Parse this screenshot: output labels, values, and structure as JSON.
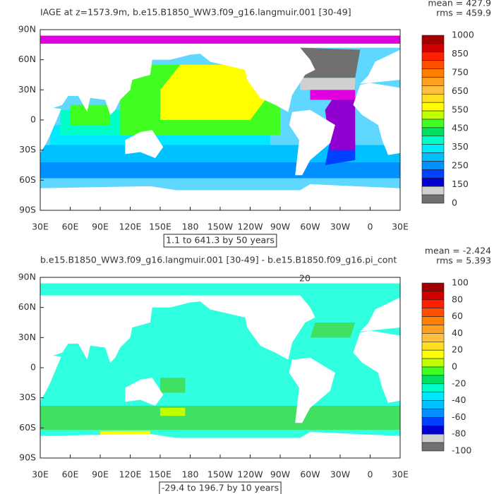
{
  "panels": [
    {
      "title": "IAGE at z=1573.9m, b.e15.B1850_WW3.f09_g16.langmuir.001 [30-49]",
      "stats": [
        "mean = 427.9",
        "rms = 459.9"
      ],
      "range_label": "1.1 to 641.3 by 50 years",
      "xlabels": [
        "30E",
        "60E",
        "90E",
        "120E",
        "150E",
        "180",
        "150W",
        "120W",
        "90W",
        "60W",
        "30W",
        "0",
        "30E"
      ],
      "ylabels": [
        "90N",
        "60N",
        "30N",
        "0",
        "30S",
        "60S",
        "90S"
      ],
      "colorbar_labels": [
        1000,
        850,
        750,
        650,
        550,
        450,
        350,
        250,
        150,
        0
      ]
    },
    {
      "title": "b.e15.B1850_WW3.f09_g16.langmuir.001 [30-49] - b.e15.B1850.f09_g16.pi_cont",
      "stats": [
        "mean = -2.424",
        "rms = 5.393"
      ],
      "range_label": "-29.4 to 196.7 by 10 years",
      "contour_label": "20",
      "xlabels": [
        "30E",
        "60E",
        "90E",
        "120E",
        "150E",
        "180",
        "150W",
        "120W",
        "90W",
        "60W",
        "30W",
        "0",
        "30E"
      ],
      "ylabels": [
        "90N",
        "60N",
        "30N",
        "0",
        "30S",
        "60S",
        "90S"
      ],
      "colorbar_labels": [
        100,
        80,
        60,
        40,
        20,
        0,
        -20,
        -40,
        -60,
        -80,
        -100
      ]
    }
  ]
}
